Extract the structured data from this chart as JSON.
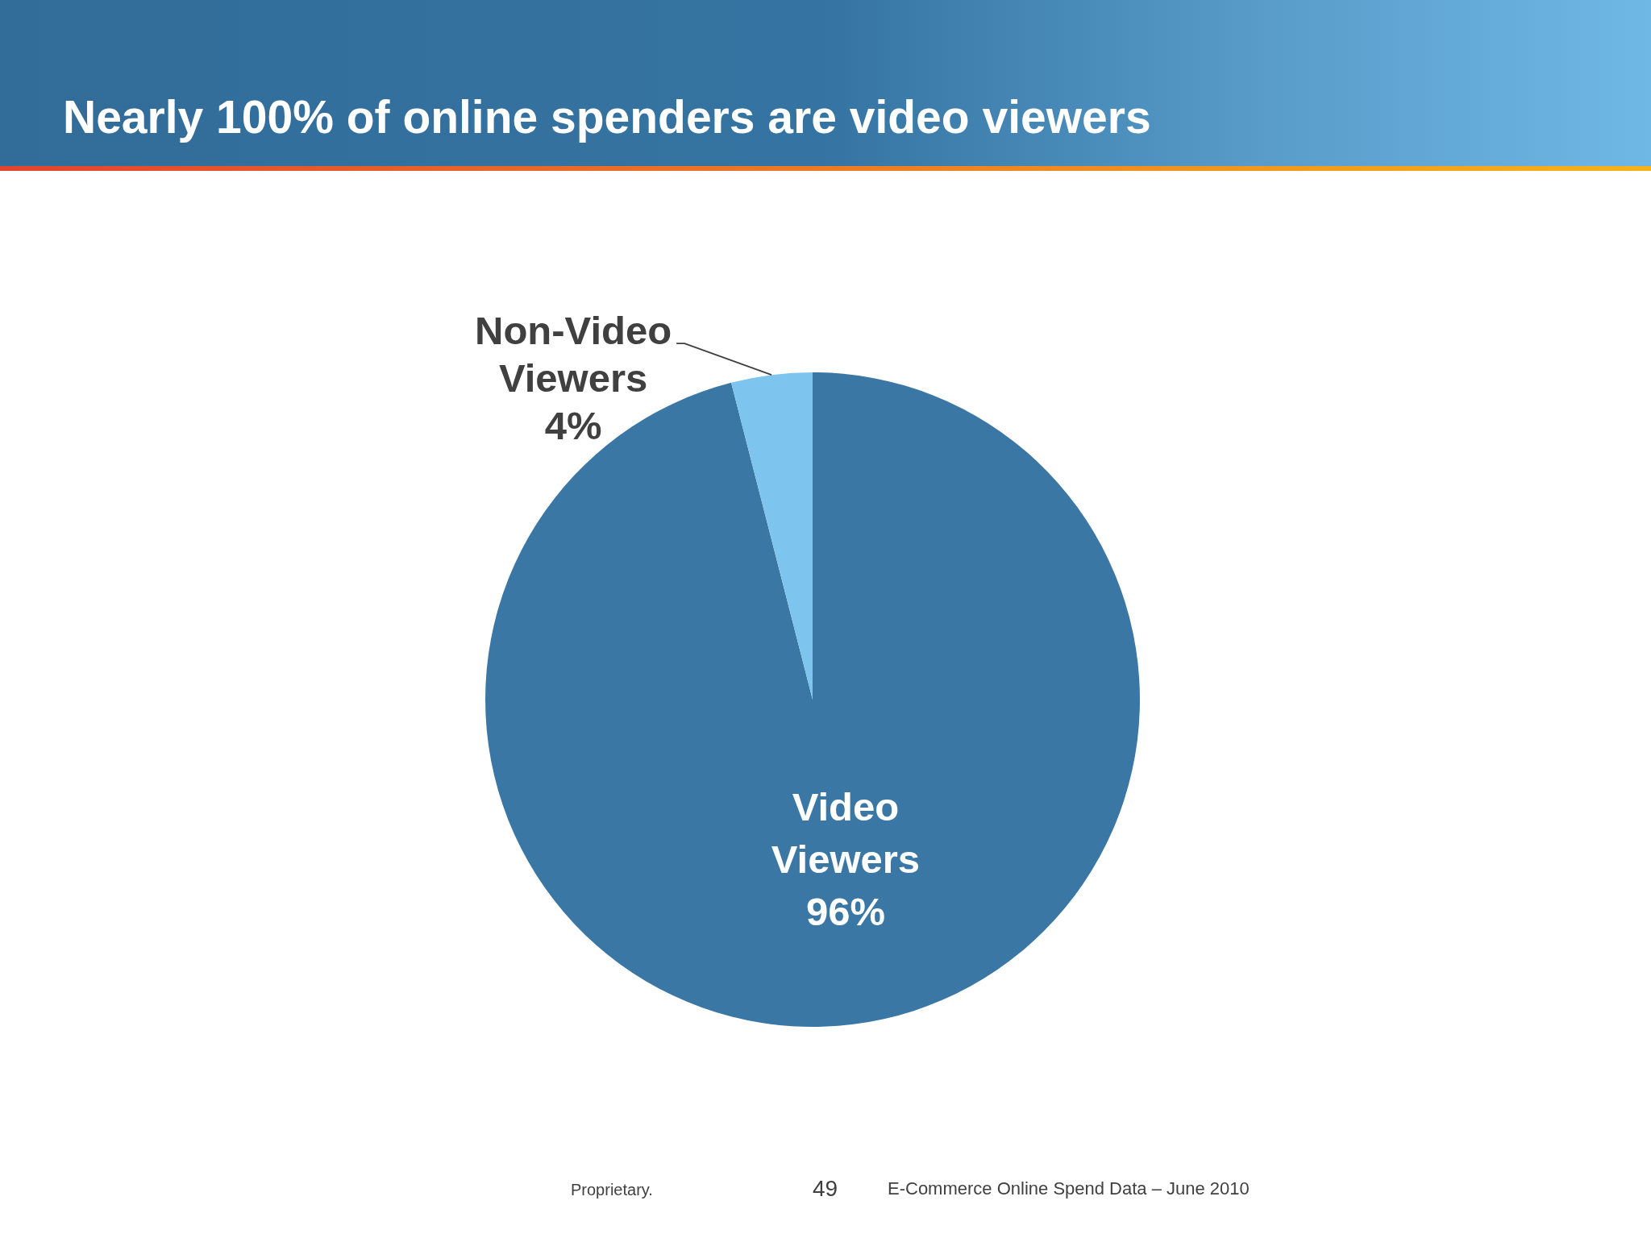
{
  "chart_data": {
    "type": "pie",
    "title": "Nearly 100% of online spenders are video viewers",
    "categories": [
      "Video Viewers",
      "Non-Video Viewers"
    ],
    "values": [
      96,
      4
    ],
    "colors": [
      "#3b77a5",
      "#7dc4ef"
    ],
    "value_labels": [
      "96%",
      "4%"
    ],
    "legend": false,
    "annotations": [
      "Proprietary.",
      "49",
      "E-Commerce Online Spend Data – June 2010"
    ]
  }
}
